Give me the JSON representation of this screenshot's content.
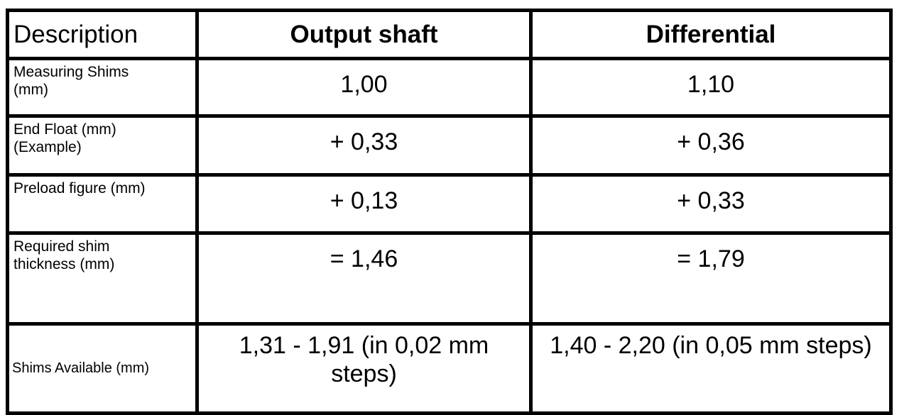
{
  "table": {
    "header": [
      "Description",
      "Output shaft",
      "Differential"
    ],
    "rows": [
      [
        "Measuring Shims\n(mm)",
        "1,00",
        "1,10"
      ],
      [
        "End Float (mm)\n(Example)",
        "+ 0,33",
        "+ 0,36"
      ],
      [
        "Preload figure (mm)",
        "+ 0,13",
        "+ 0,33"
      ],
      [
        "Required shim\nthickness (mm)",
        "= 1,46",
        "= 1,79"
      ],
      [
        "Shims Available (mm)",
        "1,31 - 1,91 (in 0,02 mm steps)",
        "1,40 - 2,20 (in 0,05 mm steps)"
      ]
    ]
  }
}
